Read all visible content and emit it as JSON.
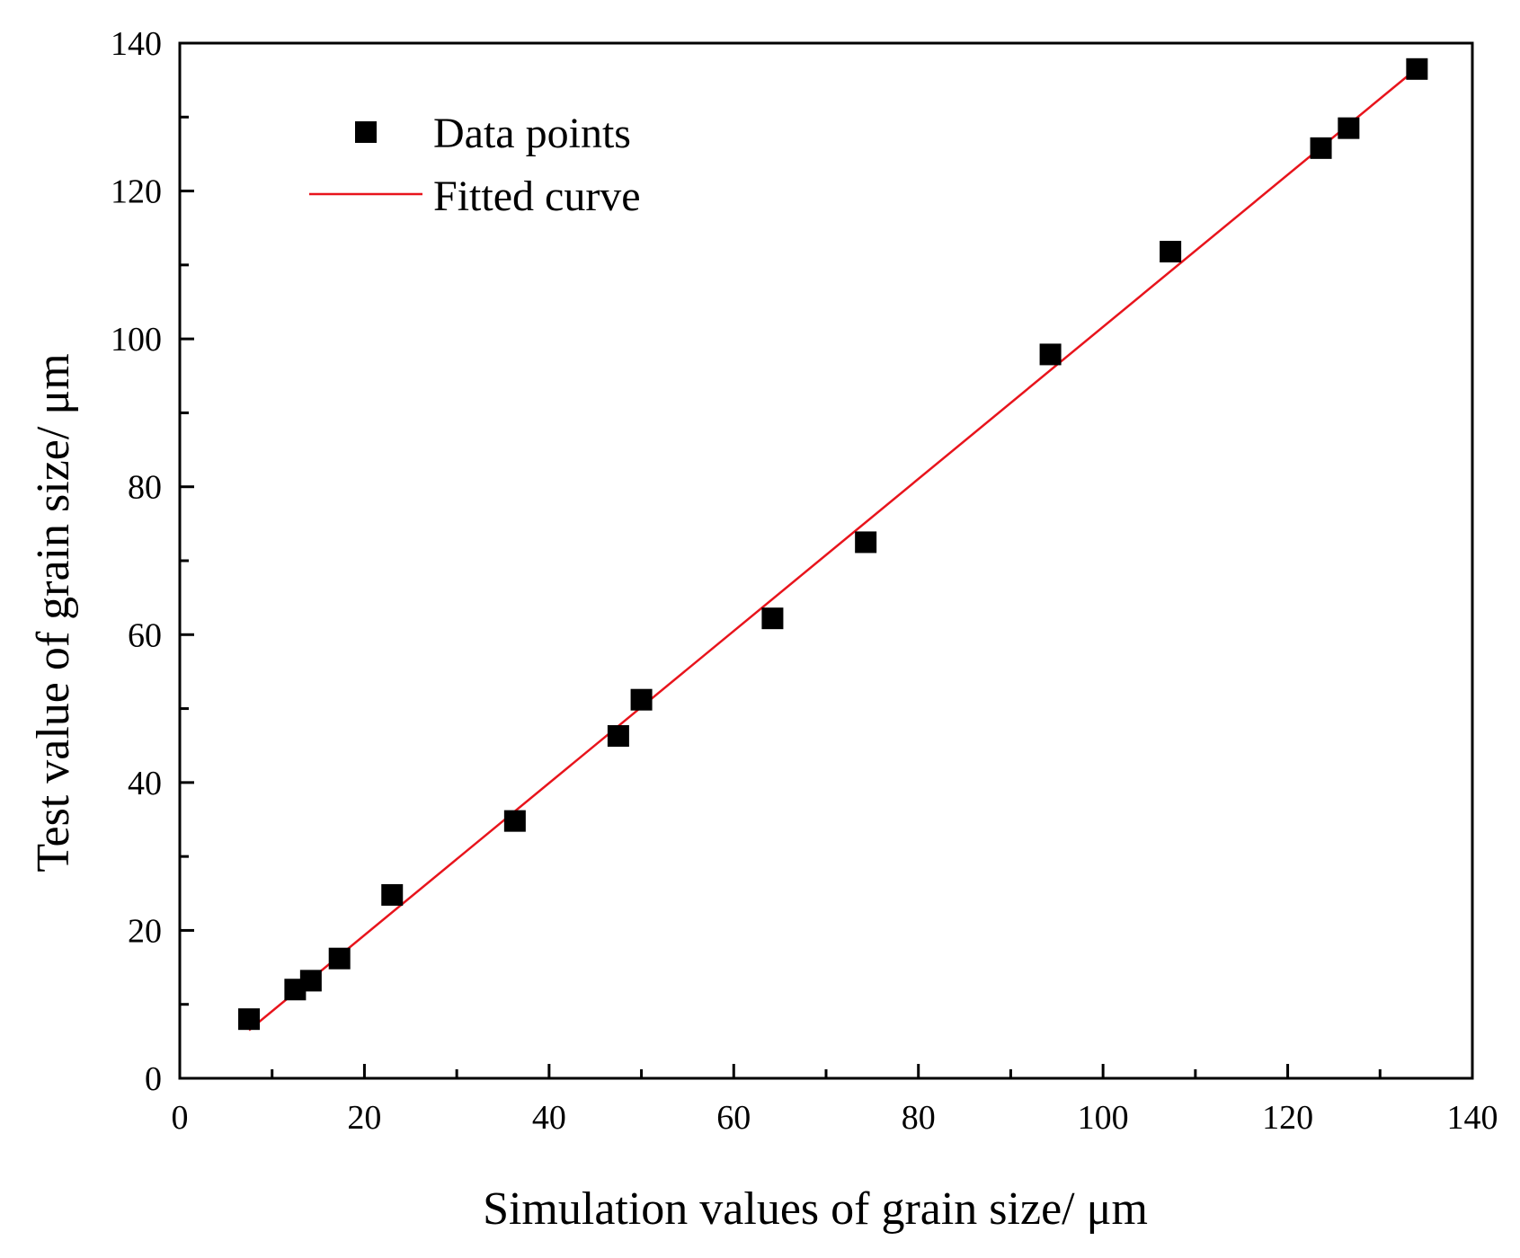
{
  "chart_data": {
    "type": "scatter",
    "title": "",
    "xlabel": "Simulation values of grain size/ μm",
    "ylabel": "Test value of grain size/ μm",
    "xlim": [
      0,
      140
    ],
    "ylim": [
      0,
      140
    ],
    "xticks": [
      "0",
      "20",
      "40",
      "60",
      "80",
      "100",
      "120",
      "140"
    ],
    "yticks": [
      "0",
      "20",
      "40",
      "60",
      "80",
      "100",
      "120",
      "140"
    ],
    "grid": false,
    "legend_position": "top-left",
    "series": [
      {
        "name": "Data points",
        "kind": "scatter",
        "marker": "square",
        "color": "#000000",
        "x": [
          7.5,
          12.5,
          14.2,
          17.3,
          23.0,
          36.3,
          47.5,
          50.0,
          64.2,
          74.3,
          94.3,
          107.3,
          123.6,
          126.6,
          134.0
        ],
        "y": [
          8.0,
          12.0,
          13.2,
          16.2,
          24.8,
          34.8,
          46.3,
          51.2,
          62.2,
          72.5,
          97.9,
          111.8,
          125.8,
          128.5,
          136.5
        ]
      },
      {
        "name": "Fitted curve",
        "kind": "line",
        "color": "#e8141c",
        "x": [
          7.5,
          134.0
        ],
        "y": [
          6.5,
          136.6
        ]
      }
    ]
  }
}
